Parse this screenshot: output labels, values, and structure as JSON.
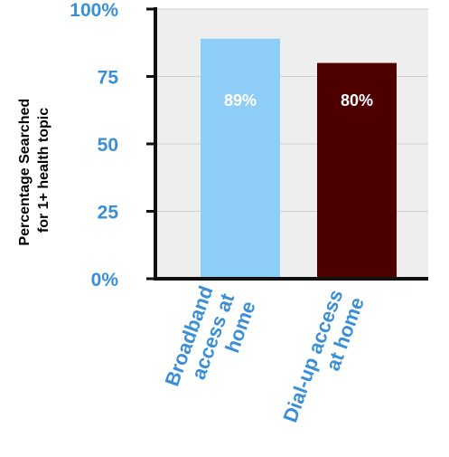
{
  "colors": {
    "accent": "#3a8fd6",
    "plot_bg": "#eeeeee",
    "grid": "#cfcfcf",
    "axis": "#111111",
    "label_text": "#ffffff"
  },
  "chart_data": {
    "type": "bar",
    "ylabel_lines": [
      "Percentage Searched",
      "for 1+ health topic"
    ],
    "ylim": [
      0,
      100
    ],
    "yticks": [
      {
        "value": 0,
        "label": "0%"
      },
      {
        "value": 25,
        "label": "25"
      },
      {
        "value": 50,
        "label": "50"
      },
      {
        "value": 75,
        "label": "75"
      },
      {
        "value": 100,
        "label": "100%"
      }
    ],
    "categories": [
      {
        "lines": [
          "Broadband",
          "access at",
          "home"
        ]
      },
      {
        "lines": [
          "Dial-up access",
          "at home"
        ]
      }
    ],
    "values": [
      89,
      80
    ],
    "data_labels": [
      "89%",
      "80%"
    ],
    "bar_colors": [
      "#8ecdf5",
      "#4e0000"
    ],
    "grid": true,
    "legend": "none"
  }
}
